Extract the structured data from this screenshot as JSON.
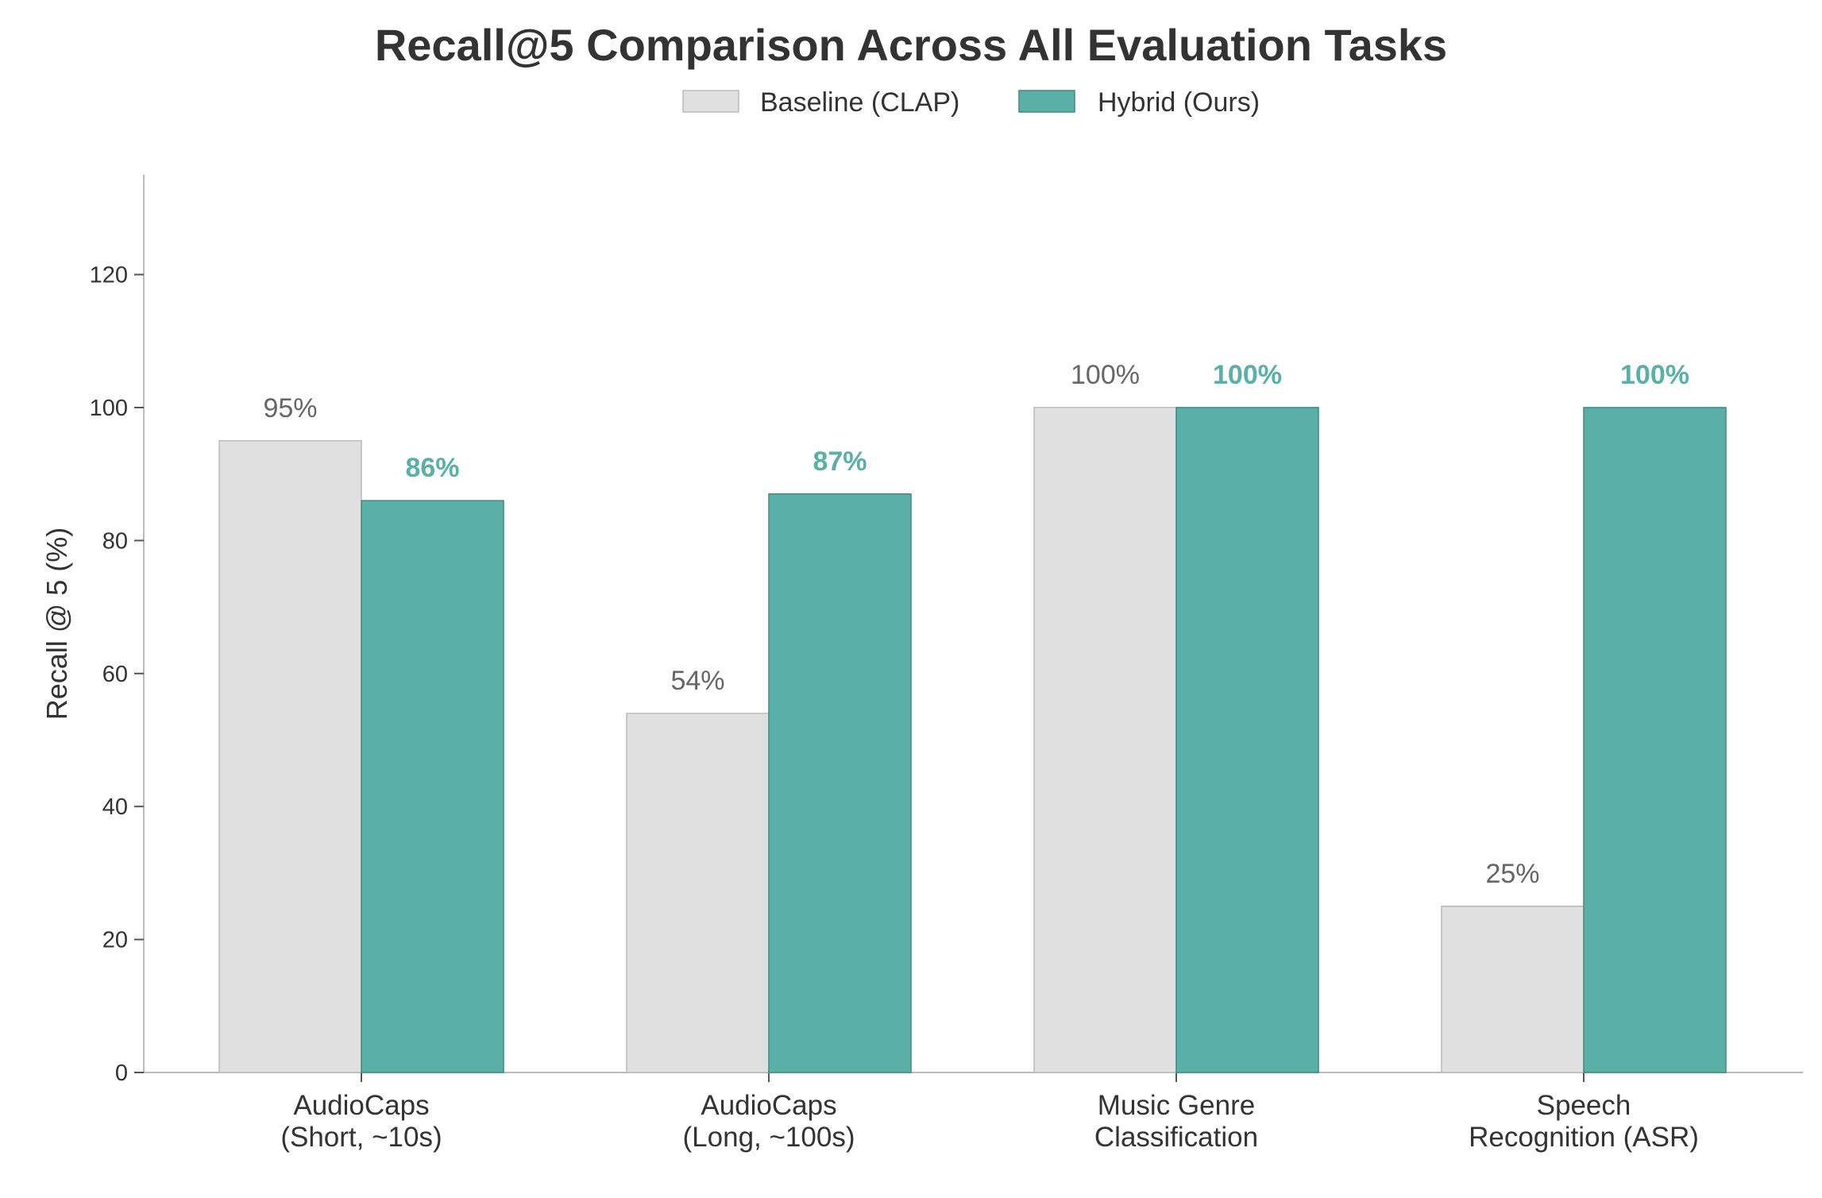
{
  "chart_data": {
    "type": "bar",
    "title": "Recall@5 Comparison Across All Evaluation Tasks",
    "xlabel": "",
    "ylabel": "Recall @ 5 (%)",
    "ylim": [
      0,
      135
    ],
    "yticks": [
      0,
      20,
      40,
      60,
      80,
      100,
      120
    ],
    "categories": [
      [
        "AudioCaps",
        "(Short, ~10s)"
      ],
      [
        "AudioCaps",
        "(Long, ~100s)"
      ],
      [
        "Music Genre",
        "Classification"
      ],
      [
        "Speech",
        "Recognition (ASR)"
      ]
    ],
    "series": [
      {
        "name": "Baseline (CLAP)",
        "values": [
          95,
          54,
          100,
          25
        ],
        "labels": [
          "95%",
          "54%",
          "100%",
          "25%"
        ],
        "color": "#e0e0e0",
        "edge": "#bbbbbb",
        "label_color": "#666666",
        "label_bold": false
      },
      {
        "name": "Hybrid (Ours)",
        "values": [
          86,
          87,
          100,
          100
        ],
        "labels": [
          "86%",
          "87%",
          "100%",
          "100%"
        ],
        "color": "#5aafa7",
        "edge": "#3f8a83",
        "label_color": "#5aafa7",
        "label_bold": true
      }
    ],
    "grid": false,
    "legend_position": "top-center"
  }
}
